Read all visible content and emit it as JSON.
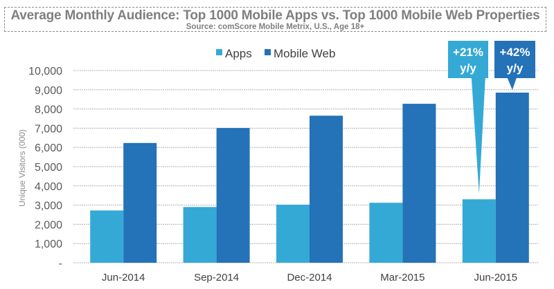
{
  "chart_data": {
    "type": "bar",
    "title": "Average Monthly Audience: Top 1000 Mobile Apps vs. Top 1000 Mobile Web Properties",
    "subtitle": "Source: comScore Mobile Metrix, U.S., Age 18+",
    "xlabel": "",
    "ylabel": "Unique Visitors (000)",
    "ylim": [
      0,
      10000
    ],
    "yticks": [
      0,
      1000,
      2000,
      3000,
      4000,
      5000,
      6000,
      7000,
      8000,
      9000,
      10000
    ],
    "ytick_labels": [
      "-",
      "1,000",
      "2,000",
      "3,000",
      "4,000",
      "5,000",
      "6,000",
      "7,000",
      "8,000",
      "9,000",
      "10,000"
    ],
    "grid": true,
    "legend_position": "top-center",
    "categories": [
      "Jun-2014",
      "Sep-2014",
      "Dec-2014",
      "Mar-2015",
      "Jun-2015"
    ],
    "series": [
      {
        "name": "Apps",
        "color": "#35a9d6",
        "values": [
          2720,
          2900,
          3020,
          3120,
          3300
        ]
      },
      {
        "name": "Mobile Web",
        "color": "#2472b8",
        "values": [
          6230,
          7010,
          7650,
          8270,
          8850
        ]
      }
    ],
    "annotations": [
      {
        "series": "Apps",
        "category": "Jun-2015",
        "line1": "+21%",
        "line2": "y/y",
        "color": "#35a9d6"
      },
      {
        "series": "Mobile Web",
        "category": "Jun-2015",
        "line1": "+42%",
        "line2": "y/y",
        "color": "#2472b8"
      }
    ]
  },
  "colors": {
    "grid": "#b0b0b0",
    "border": "#8a8a8a",
    "text": "#7f7f7f"
  }
}
